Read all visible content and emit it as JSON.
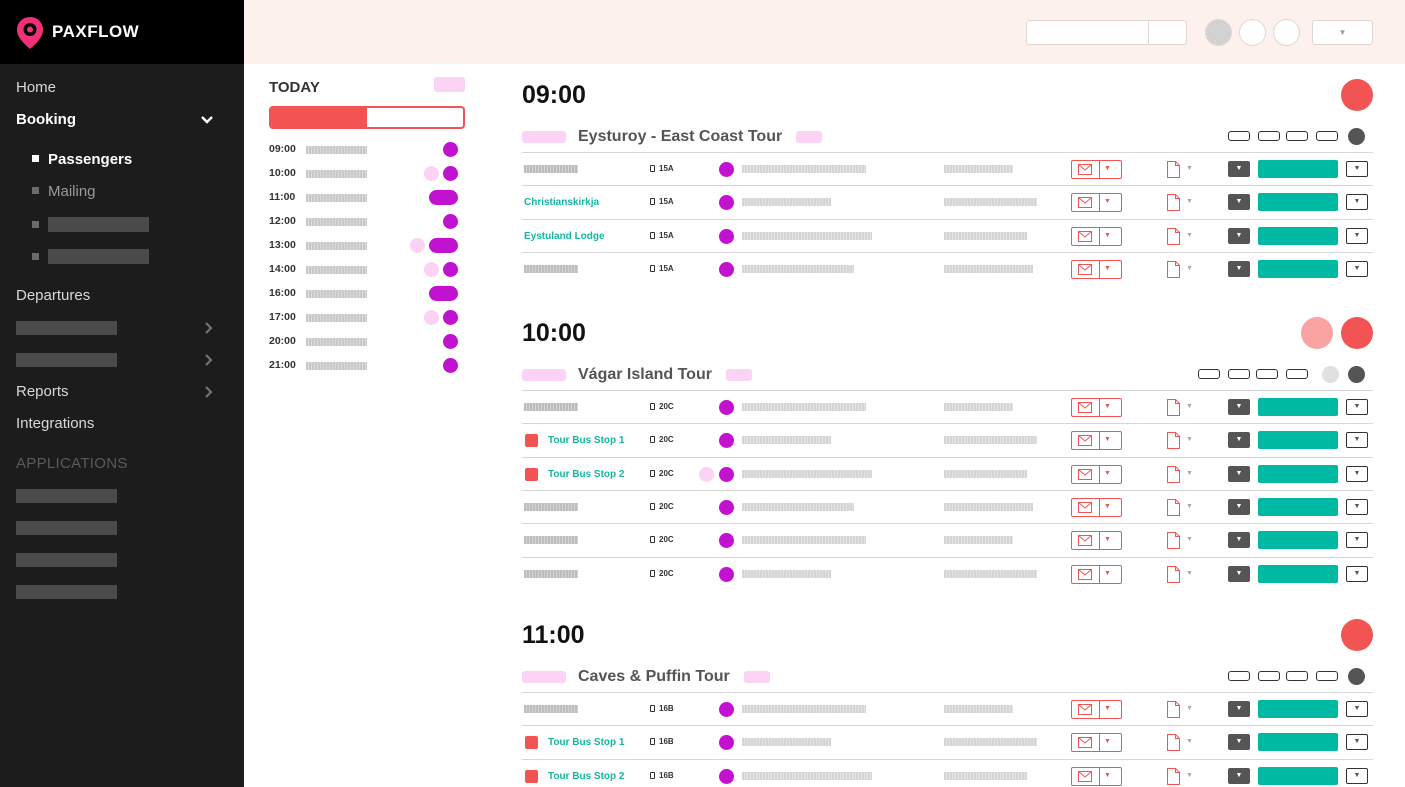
{
  "app": {
    "brand": "PAXFLOW",
    "accent_color": "#f25454",
    "teal_color": "#00b9a3",
    "purple_color": "#c212cf"
  },
  "sidebar": {
    "items": [
      {
        "label": "Home"
      },
      {
        "label": "Booking",
        "active": true,
        "expanded": true
      },
      {
        "label": "Departures"
      },
      {
        "label": "Reports"
      },
      {
        "label": "Integrations"
      }
    ],
    "booking_children": [
      {
        "label": "Passengers",
        "active": true
      },
      {
        "label": "Mailing"
      }
    ],
    "section_heading": "APPLICATIONS"
  },
  "today": {
    "title": "TODAY",
    "progress_fraction": 0.5,
    "times": [
      {
        "time": "09:00"
      },
      {
        "time": "10:00"
      },
      {
        "time": "11:00"
      },
      {
        "time": "12:00"
      },
      {
        "time": "13:00"
      },
      {
        "time": "14:00"
      },
      {
        "time": "16:00"
      },
      {
        "time": "17:00"
      },
      {
        "time": "20:00"
      },
      {
        "time": "21:00"
      }
    ]
  },
  "departures": [
    {
      "time": "09:00",
      "tour": "Eysturoy - East Coast Tour",
      "rows": [
        {
          "name": "",
          "seat": "15A"
        },
        {
          "name": "Christianskirkja",
          "seat": "15A"
        },
        {
          "name": "Eystuland Lodge",
          "seat": "15A"
        },
        {
          "name": "",
          "seat": "15A"
        }
      ]
    },
    {
      "time": "10:00",
      "tour": "Vágar Island Tour",
      "rows": [
        {
          "name": "",
          "seat": "20C"
        },
        {
          "name": "Tour Bus Stop 1",
          "seat": "20C"
        },
        {
          "name": "Tour Bus Stop 2",
          "seat": "20C"
        },
        {
          "name": "",
          "seat": "20C"
        },
        {
          "name": "",
          "seat": "20C"
        },
        {
          "name": "",
          "seat": "20C"
        }
      ]
    },
    {
      "time": "11:00",
      "tour": "Caves & Puffin Tour",
      "rows": [
        {
          "name": "",
          "seat": "16B"
        },
        {
          "name": "Tour Bus Stop 1",
          "seat": "16B"
        },
        {
          "name": "Tour Bus Stop 2",
          "seat": "16B"
        }
      ]
    }
  ]
}
